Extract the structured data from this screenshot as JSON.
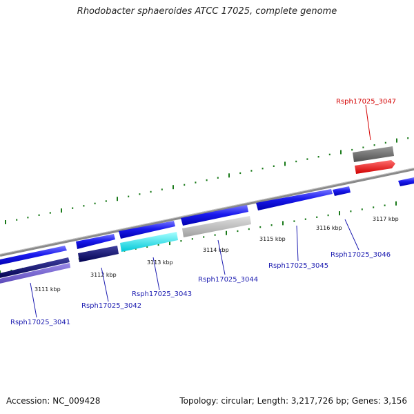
{
  "title": "Rhodobacter sphaeroides ATCC 17025, complete genome",
  "footer": {
    "accession": "Accession: NC_009428",
    "summary": "Topology: circular; Length: 3,217,726 bp; Genes: 3,156"
  },
  "ticks": [
    {
      "label": "3111 kbp"
    },
    {
      "label": "3112 kbp"
    },
    {
      "label": "3113 kbp"
    },
    {
      "label": "3114 kbp"
    },
    {
      "label": "3115 kbp"
    },
    {
      "label": "3116 kbp"
    },
    {
      "label": "3117 kbp"
    }
  ],
  "genes": [
    {
      "name": "Rsph17025_3041",
      "color": "#00009c",
      "highlight": false
    },
    {
      "name": "Rsph17025_3042",
      "color": "#00009c",
      "highlight": false
    },
    {
      "name": "Rsph17025_3043",
      "color": "#00009c",
      "highlight": false
    },
    {
      "name": "Rsph17025_3044",
      "color": "#00009c",
      "highlight": false
    },
    {
      "name": "Rsph17025_3045",
      "color": "#00009c",
      "highlight": false
    },
    {
      "name": "Rsph17025_3046",
      "color": "#00009c",
      "highlight": false
    },
    {
      "name": "Rsph17025_3047",
      "color": "#d40000",
      "highlight": true
    }
  ],
  "colors": {
    "backbone": "#8a8a8a",
    "tick": "#1a7a1a",
    "cds": "#1010e0",
    "rna_gray": "#b8b8b8",
    "cyan": "#00e5ee",
    "navy": "#101070",
    "lavender": "#6a5acd",
    "red": "#ee1111"
  }
}
